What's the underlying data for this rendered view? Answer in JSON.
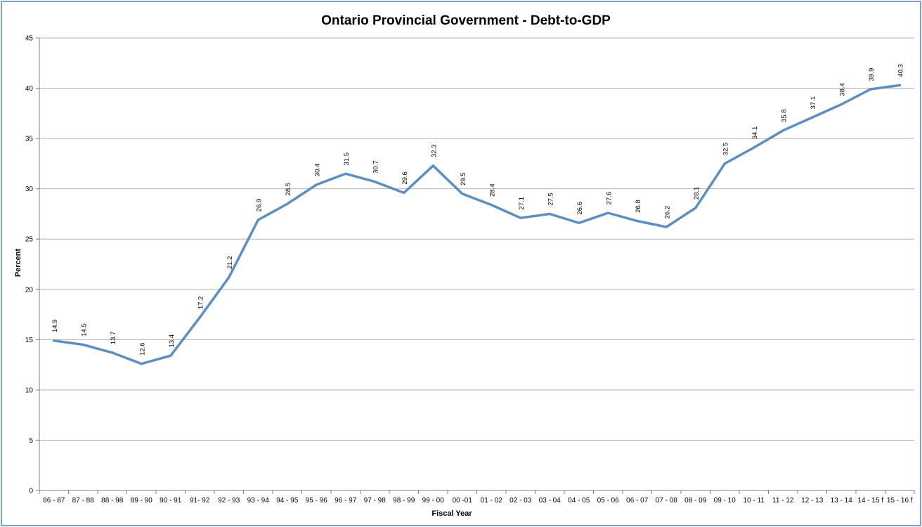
{
  "chart_data": {
    "type": "line",
    "title": "Ontario Provincial Government - Debt-to-GDP",
    "xlabel": "Fiscal Year",
    "ylabel": "Percent",
    "ylim": [
      0,
      45
    ],
    "y_ticks": [
      0,
      5,
      10,
      15,
      20,
      25,
      30,
      35,
      40,
      45
    ],
    "grid": true,
    "legend": "none",
    "line_color": "#5b8fc4",
    "grid_color": "#b3b3b3",
    "categories": [
      "86 - 87",
      "87 - 88",
      "88 - 98",
      "89 - 90",
      "90 - 91",
      "91- 92",
      "92 - 93",
      "93 - 94",
      "94 - 95",
      "95 - 96",
      "96 - 97",
      "97 - 98",
      "98 - 99",
      "99 - 00",
      "00 -01",
      "01 - 02",
      "02 - 03",
      "03 - 04",
      "04 - 05",
      "05 - 06",
      "06 - 07",
      "07 - 08",
      "08 - 09",
      "09 - 10",
      "10 - 11",
      "11 - 12",
      "12 - 13",
      "13 - 14",
      "14 - 15 f",
      "15 - 16 f"
    ],
    "series": [
      {
        "values": [
          14.9,
          14.5,
          13.7,
          12.6,
          13.4,
          17.2,
          21.2,
          26.9,
          28.5,
          30.4,
          31.5,
          30.7,
          29.6,
          32.3,
          29.5,
          28.4,
          27.1,
          27.5,
          26.6,
          27.6,
          26.8,
          26.2,
          28.1,
          32.5,
          34.1,
          35.8,
          37.1,
          38.4,
          39.9,
          40.3
        ],
        "labels": [
          "14.9",
          "14.5",
          "13.7",
          "12.6",
          "13.4",
          "17.2",
          "21.2",
          "26.9",
          "28.5",
          "30.4",
          "31.5",
          "30.7",
          "29.6",
          "32.3",
          "29.5",
          "28.4",
          "27.1",
          "27.5",
          "26.6",
          "27.6",
          "26.8",
          "26.2",
          "28.1",
          "32.5",
          "34.1",
          "35.8",
          "37.1",
          "38.4",
          "39.9",
          "40.3"
        ]
      }
    ]
  }
}
